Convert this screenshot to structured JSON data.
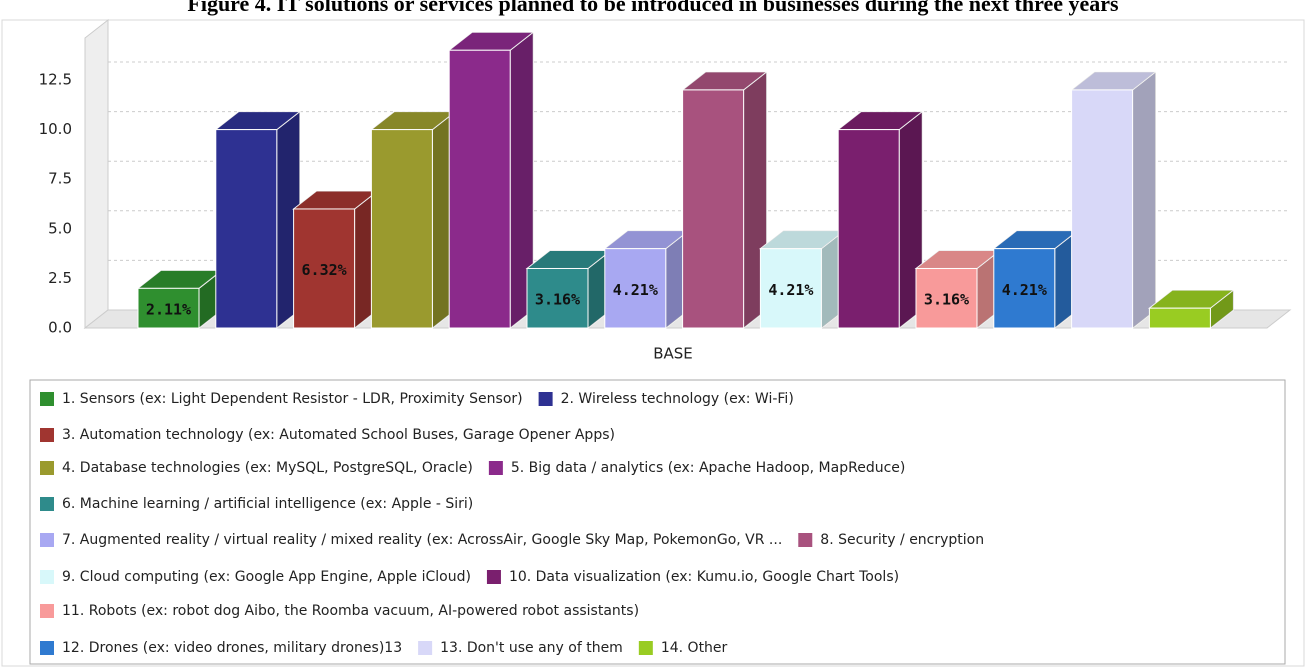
{
  "chart_data": {
    "type": "bar3d",
    "title": "Figure 4. IT solutions or services planned to be introduced in businesses during the next three years",
    "xlabel": "BASE",
    "categories": [
      "1. Sensors (ex: Light Dependent Resistor - LDR, Proximity Sensor)",
      "2. Wireless technology (ex: Wi-Fi)",
      "3. Automation technology (ex: Automated School Buses, Garage Opener Apps)",
      "4. Database technologies (ex: MySQL, PostgreSQL, Oracle)",
      "5. Big data / analytics (ex: Apache Hadoop, MapReduce)",
      "6. Machine learning / artificial intelligence (ex: Apple - Siri)",
      "7. Augmented reality / virtual reality / mixed reality (ex: AcrossAir, Google Sky Map, PokemonGo, VR ...",
      "8. Security / encryption",
      "9. Cloud computing (ex: Google App Engine, Apple iCloud)",
      "10. Data visualization (ex: Kumu.io, Google Chart Tools)",
      "11. Robots (ex: robot dog Aibo, the Roomba vacuum, AI-powered robot assistants)",
      "12. Drones (ex: video drones, military drones)13",
      "13. Don't use any of them",
      "14. Other"
    ],
    "values": [
      2,
      10,
      6,
      10,
      14,
      3,
      4,
      12,
      4,
      10,
      3,
      4,
      12,
      1
    ],
    "value_labels": [
      "2.11%",
      null,
      "6.32%",
      null,
      null,
      "3.16%",
      "4.21%",
      null,
      "4.21%",
      null,
      "3.16%",
      "4.21%",
      null,
      null
    ],
    "colors": [
      "#2f8f2f",
      "#2e3192",
      "#a03530",
      "#9a9a2e",
      "#8b2a8b",
      "#2e8b8b",
      "#a8a8f2",
      "#a8527e",
      "#d8f8fa",
      "#7a1f6e",
      "#f89a9a",
      "#2f7ad0",
      "#d8d8f8",
      "#99cc22"
    ],
    "ylim": [
      0,
      15
    ],
    "yticks": [
      {
        "value": 0,
        "label": "0.0"
      },
      2.5,
      {
        "value": 5,
        "label": "5.0"
      },
      7.5,
      {
        "value": 10,
        "label": "10.0"
      },
      12.5
    ],
    "grid": true
  }
}
